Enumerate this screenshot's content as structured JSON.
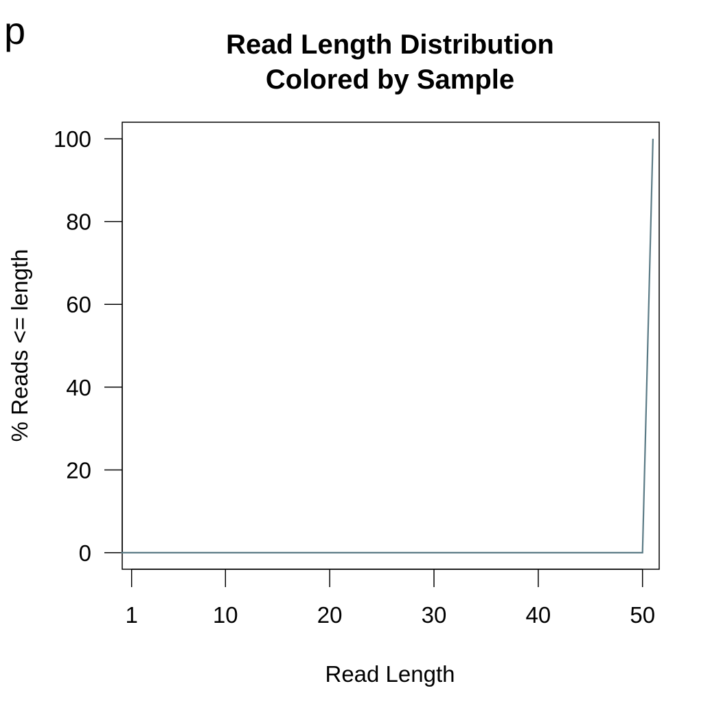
{
  "panel_label": "p",
  "chart_data": {
    "type": "line",
    "title": [
      "Read Length Distribution",
      "Colored by Sample"
    ],
    "xlabel": "Read Length",
    "ylabel": "% Reads <= length",
    "xlim": [
      0.1,
      51.6
    ],
    "ylim": [
      -4,
      104
    ],
    "x_ticks": [
      1,
      10,
      20,
      30,
      40,
      50
    ],
    "y_ticks": [
      0,
      20,
      40,
      60,
      80,
      100
    ],
    "grid": false,
    "series": [
      {
        "color": "#5a7a85",
        "x": [
          0,
          1,
          5,
          10,
          20,
          30,
          40,
          50,
          51
        ],
        "y": [
          0,
          0,
          0,
          0,
          0,
          0,
          0,
          0,
          100
        ]
      }
    ]
  }
}
